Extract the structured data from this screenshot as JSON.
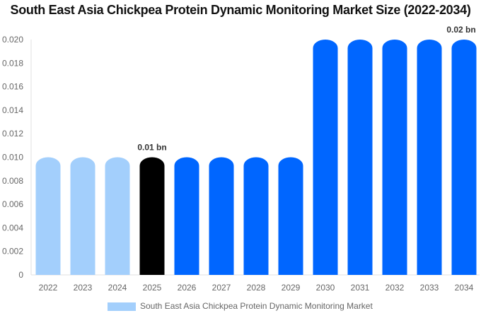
{
  "chart_data": {
    "type": "bar",
    "title": "South East Asia Chickpea Protein Dynamic Monitoring Market Size (2022-2034)",
    "categories": [
      "2022",
      "2023",
      "2024",
      "2025",
      "2026",
      "2027",
      "2028",
      "2029",
      "2030",
      "2031",
      "2032",
      "2033",
      "2034"
    ],
    "series": [
      {
        "name": "South East Asia Chickpea Protein Dynamic Monitoring Market",
        "values": [
          0.01,
          0.01,
          0.01,
          0.01,
          0.01,
          0.01,
          0.01,
          0.01,
          0.02,
          0.02,
          0.02,
          0.02,
          0.02
        ]
      }
    ],
    "bar_colors": [
      "#a3cffc",
      "#a3cffc",
      "#a3cffc",
      "#000000",
      "#0066ff",
      "#0066ff",
      "#0066ff",
      "#0066ff",
      "#0066ff",
      "#0066ff",
      "#0066ff",
      "#0066ff",
      "#0066ff"
    ],
    "data_labels": [
      {
        "category": "2025",
        "text": "0.01 bn"
      },
      {
        "category": "2034",
        "text": "0.02 bn"
      }
    ],
    "ylim": [
      0,
      0.02
    ],
    "yticks": [
      "0",
      "0.002",
      "0.004",
      "0.006",
      "0.008",
      "0.010",
      "0.012",
      "0.014",
      "0.016",
      "0.018",
      "0.020"
    ],
    "xlabel": "",
    "ylabel": "",
    "grid": false,
    "legend": {
      "position": "bottom",
      "color": "#a3cffc"
    }
  }
}
